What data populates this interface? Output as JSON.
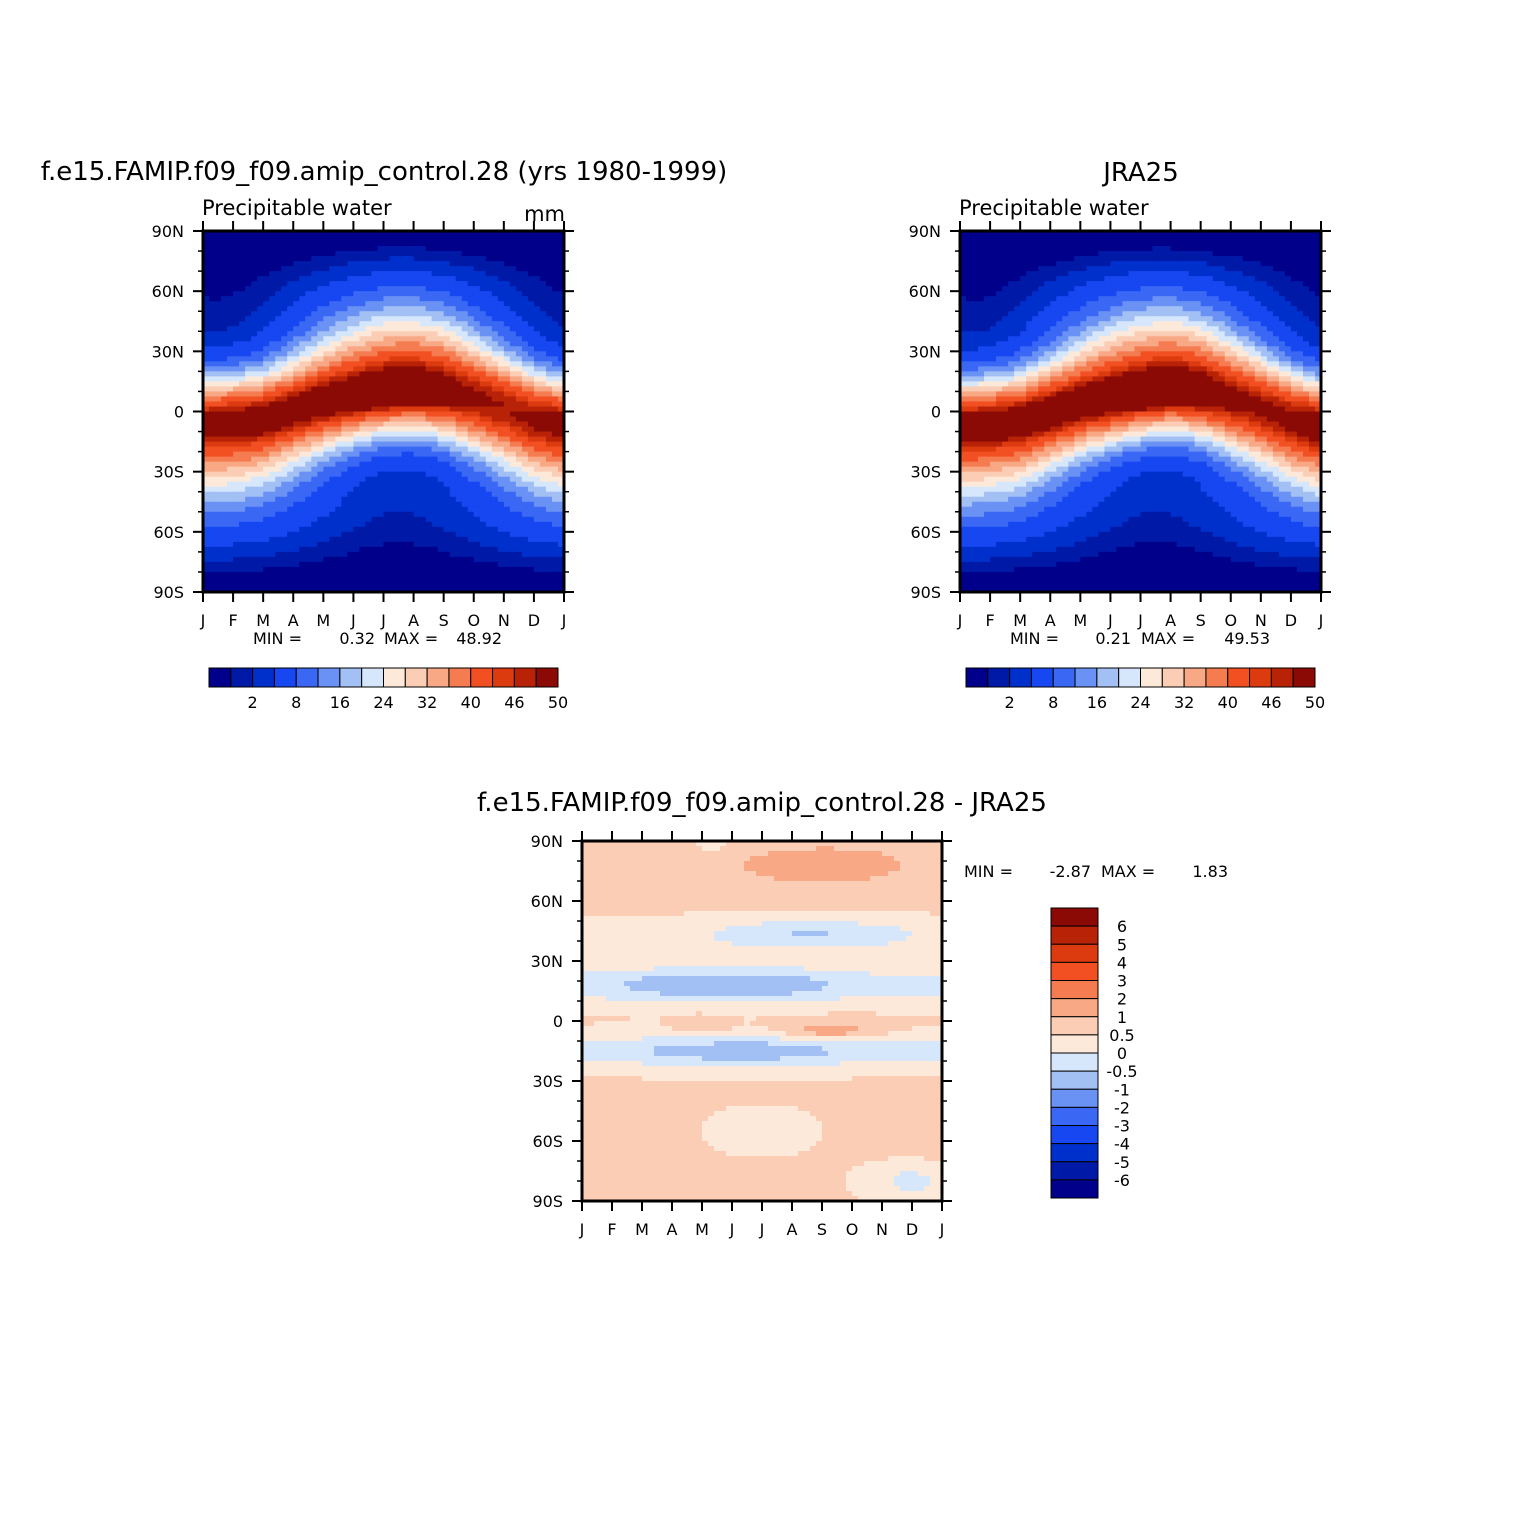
{
  "chart_data": [
    {
      "type": "heatmap",
      "panel": "model",
      "title": "f.e15.FAMIP.f09_f09.amip_control.28 (yrs 1980-1999)",
      "left_string": "Precipitable water",
      "right_string": "mm",
      "x_tick_labels": [
        "J",
        "F",
        "M",
        "A",
        "M",
        "J",
        "J",
        "A",
        "S",
        "O",
        "N",
        "D",
        "J"
      ],
      "y_tick_labels": [
        "90N",
        "60N",
        "30N",
        "0",
        "30S",
        "60S",
        "90S"
      ],
      "ylim": [
        -90,
        90
      ],
      "stats": {
        "min_label": "MIN =",
        "min": "0.32",
        "max_label": "MAX =",
        "max": "48.92"
      },
      "colorbar": {
        "orientation": "horizontal",
        "label_strings": [
          "2",
          "8",
          "16",
          "24",
          "32",
          "40",
          "46",
          "50"
        ],
        "levels": [
          1,
          2,
          4,
          8,
          12,
          16,
          20,
          24,
          28,
          32,
          36,
          40,
          44,
          46,
          48,
          50
        ]
      },
      "field": {
        "equator_max": 48.92,
        "polar_min": 0.32,
        "itcz_lat_by_month": [
          -4,
          -3,
          -2,
          1,
          4,
          6,
          8,
          9,
          8,
          5,
          2,
          -2,
          -4
        ]
      }
    },
    {
      "type": "heatmap",
      "panel": "observations",
      "title": "JRA25",
      "left_string": "Precipitable water",
      "x_tick_labels": [
        "J",
        "F",
        "M",
        "A",
        "M",
        "J",
        "J",
        "A",
        "S",
        "O",
        "N",
        "D",
        "J"
      ],
      "y_tick_labels": [
        "90N",
        "60N",
        "30N",
        "0",
        "30S",
        "60S",
        "90S"
      ],
      "ylim": [
        -90,
        90
      ],
      "stats": {
        "min_label": "MIN =",
        "min": "0.21",
        "max_label": "MAX =",
        "max": "49.53"
      },
      "colorbar": {
        "orientation": "horizontal",
        "label_strings": [
          "2",
          "8",
          "16",
          "24",
          "32",
          "40",
          "46",
          "50"
        ],
        "levels": [
          1,
          2,
          4,
          8,
          12,
          16,
          20,
          24,
          28,
          32,
          36,
          40,
          44,
          46,
          48,
          50
        ]
      },
      "field": {
        "equator_max": 49.53,
        "polar_min": 0.21,
        "itcz_lat_by_month": [
          -5,
          -4,
          -3,
          0,
          3,
          5,
          7,
          9,
          8,
          5,
          2,
          -2,
          -5
        ]
      }
    },
    {
      "type": "heatmap",
      "panel": "difference",
      "title": "f.e15.FAMIP.f09_f09.amip_control.28 - JRA25",
      "x_tick_labels": [
        "J",
        "F",
        "M",
        "A",
        "M",
        "J",
        "J",
        "A",
        "S",
        "O",
        "N",
        "D",
        "J"
      ],
      "y_tick_labels": [
        "90N",
        "60N",
        "30N",
        "0",
        "30S",
        "60S",
        "90S"
      ],
      "ylim": [
        -90,
        90
      ],
      "stats": {
        "min_label": "MIN =",
        "min": "-2.87",
        "max_label": "MAX =",
        "max": "1.83"
      },
      "colorbar": {
        "orientation": "vertical",
        "label_strings": [
          "6",
          "5",
          "4",
          "3",
          "2",
          "1",
          "0.5",
          "0",
          "-0.5",
          "-1",
          "-2",
          "-3",
          "-4",
          "-5",
          "-6"
        ],
        "levels": [
          -6,
          -5,
          -4,
          -3,
          -2,
          -1,
          -0.5,
          0,
          0.5,
          1,
          2,
          3,
          4,
          5,
          6
        ]
      }
    }
  ],
  "colors": {
    "blue_red_16": [
      "#00008a",
      "#0019a6",
      "#0030cc",
      "#1747f0",
      "#3a68f5",
      "#6a92f5",
      "#a3c0f5",
      "#d6e7fb",
      "#fde9da",
      "#fbcdb5",
      "#f8a884",
      "#f57c50",
      "#f25022",
      "#dc3b0f",
      "#b82308",
      "#8b0a05"
    ],
    "diff_16": [
      "#00008a",
      "#0019a6",
      "#0030cc",
      "#1747f0",
      "#3a68f5",
      "#6a92f5",
      "#a3c0f5",
      "#d6e7fb",
      "#fde9da",
      "#fbcdb5",
      "#f8a884",
      "#f57c50",
      "#f25022",
      "#dc3b0f",
      "#b82308",
      "#8b0a05"
    ]
  }
}
